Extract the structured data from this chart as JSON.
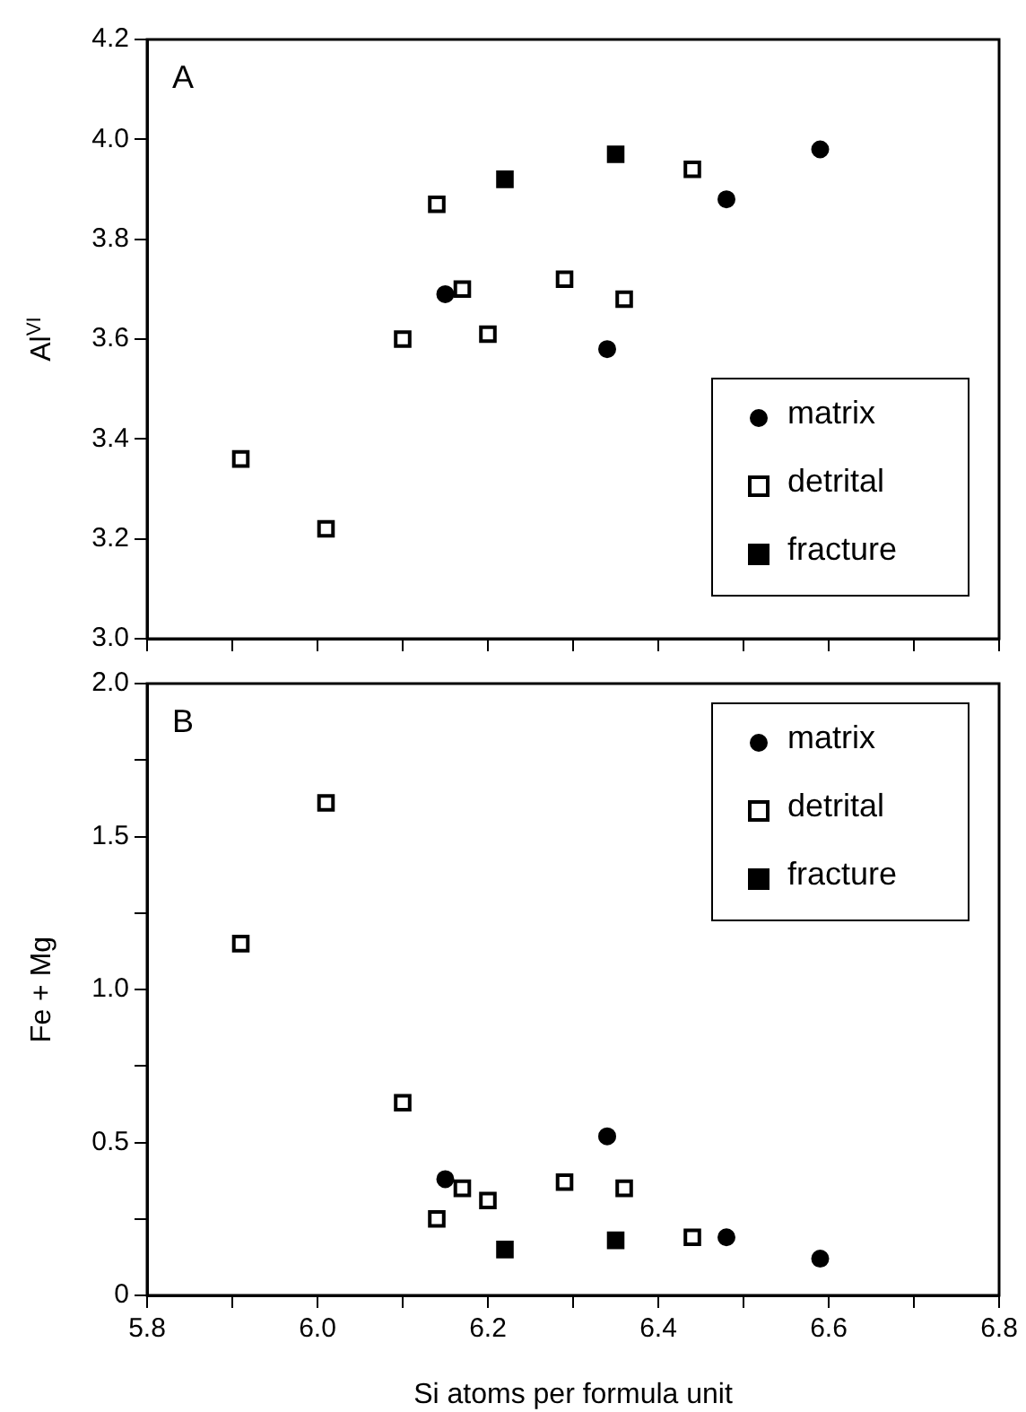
{
  "chart_data": [
    {
      "type": "scatter",
      "title": "A",
      "ylabel": "Al$^{VI}$",
      "xlim": [
        5.8,
        6.8
      ],
      "ylim": [
        3.0,
        4.2
      ],
      "xticks": [
        5.8,
        {
          "value": 5.9,
          "label": null
        },
        6,
        {
          "value": 6.1,
          "label": null
        },
        6.2,
        {
          "value": 6.3,
          "label": null
        },
        6.4,
        {
          "value": 6.5,
          "label": null
        },
        6.6,
        {
          "value": 6.7,
          "label": null
        },
        6.8
      ],
      "yticks": [
        {
          "value": 3.0,
          "label": "3.0"
        },
        3.2,
        3.4,
        3.6,
        3.8,
        {
          "value": 4.0,
          "label": "4.0"
        },
        4.2
      ],
      "tick_labels": "y",
      "legend": "bottom right",
      "series": [
        {
          "name": "matrix",
          "color": "#000000",
          "marker": "circle",
          "x": [
            6.15,
            6.34,
            6.48,
            6.59
          ],
          "values": [
            3.69,
            3.58,
            3.88,
            3.98
          ]
        },
        {
          "name": "detrital",
          "color": "#000000",
          "marker": "square-open",
          "x": [
            5.91,
            6.01,
            6.1,
            6.14,
            6.17,
            6.2,
            6.29,
            6.36,
            6.44
          ],
          "values": [
            3.36,
            3.22,
            3.6,
            3.87,
            3.7,
            3.61,
            3.72,
            3.68,
            3.94
          ]
        },
        {
          "name": "fracture",
          "color": "#000000",
          "marker": "square",
          "x": [
            6.22,
            6.35
          ],
          "values": [
            3.92,
            3.97
          ]
        }
      ]
    },
    {
      "type": "scatter",
      "title": "B",
      "ylabel": "Fe + Mg",
      "xlabel": "Si atoms per formula unit",
      "xlim": [
        5.8,
        6.8
      ],
      "ylim": [
        0,
        2.0
      ],
      "xticks": [
        5.8,
        {
          "value": 5.9,
          "label": null
        },
        {
          "value": 6.0,
          "label": "6.0"
        },
        {
          "value": 6.1,
          "label": null
        },
        6.2,
        {
          "value": 6.3,
          "label": null
        },
        6.4,
        {
          "value": 6.5,
          "label": null
        },
        6.6,
        {
          "value": 6.7,
          "label": null
        },
        6.8
      ],
      "yticks": [
        0,
        {
          "value": 0.25,
          "label": null
        },
        0.5,
        {
          "value": 0.75,
          "label": null
        },
        {
          "value": 1.0,
          "label": "1.0"
        },
        {
          "value": 1.25,
          "label": null
        },
        1.5,
        {
          "value": 1.75,
          "label": null
        },
        {
          "value": 2.0,
          "label": "2.0"
        }
      ],
      "legend": "top right",
      "series": [
        {
          "name": "matrix",
          "color": "#000000",
          "marker": "circle",
          "x": [
            6.15,
            6.34,
            6.48,
            6.59
          ],
          "values": [
            0.38,
            0.52,
            0.19,
            0.12
          ]
        },
        {
          "name": "detrital",
          "color": "#000000",
          "marker": "square-open",
          "x": [
            5.91,
            6.01,
            6.1,
            6.14,
            6.17,
            6.2,
            6.29,
            6.36,
            6.44
          ],
          "values": [
            1.15,
            1.61,
            0.63,
            0.25,
            0.35,
            0.31,
            0.37,
            0.35,
            0.19
          ]
        },
        {
          "name": "fracture",
          "color": "#000000",
          "marker": "square",
          "x": [
            6.22,
            6.35
          ],
          "values": [
            0.15,
            0.18
          ]
        }
      ]
    }
  ]
}
